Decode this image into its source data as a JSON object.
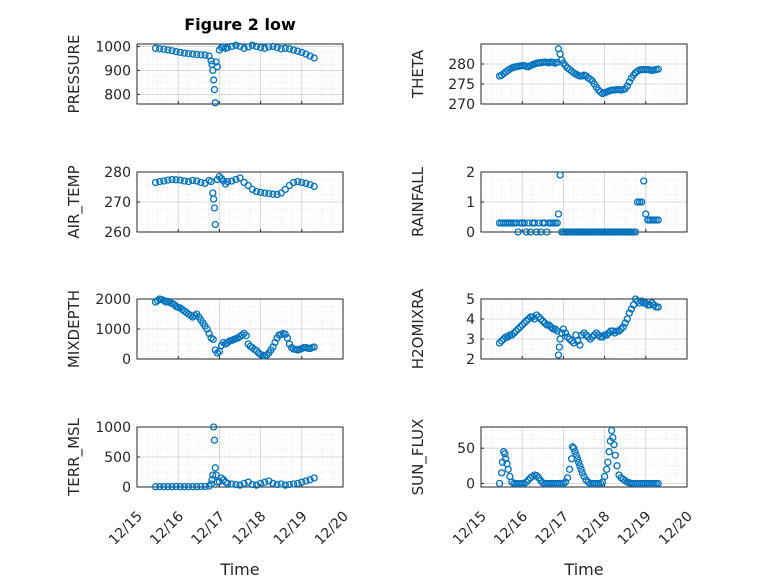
{
  "figure": {
    "title": "Figure 2 low",
    "marker_color": "#0072bd"
  },
  "chart_data": [
    {
      "type": "scatter",
      "panel": "pressure",
      "title": "Figure 2 low",
      "ylabel": "PRESSURE",
      "ylim": [
        760,
        1010
      ],
      "yticks": [
        800,
        900,
        1000
      ],
      "xlim": [
        15,
        20
      ],
      "x": [
        15.45,
        15.55,
        15.65,
        15.75,
        15.85,
        15.95,
        16.05,
        16.15,
        16.25,
        16.35,
        16.45,
        16.55,
        16.65,
        16.75,
        16.8,
        16.82,
        16.84,
        16.86,
        16.88,
        16.9,
        16.92,
        16.95,
        17.0,
        17.05,
        17.1,
        17.15,
        17.2,
        17.3,
        17.4,
        17.5,
        17.6,
        17.7,
        17.8,
        17.9,
        18.0,
        18.1,
        18.2,
        18.3,
        18.4,
        18.5,
        18.6,
        18.7,
        18.8,
        18.9,
        19.0,
        19.1,
        19.2,
        19.3
      ],
      "y": [
        992,
        990,
        988,
        985,
        982,
        978,
        975,
        972,
        970,
        968,
        966,
        965,
        964,
        960,
        940,
        925,
        900,
        860,
        820,
        765,
        935,
        915,
        985,
        995,
        998,
        992,
        995,
        1000,
        1005,
        1000,
        992,
        998,
        1005,
        1000,
        995,
        992,
        998,
        1000,
        995,
        990,
        992,
        990,
        985,
        980,
        975,
        968,
        960,
        952
      ]
    },
    {
      "type": "scatter",
      "panel": "theta",
      "ylabel": "THETA",
      "ylim": [
        270,
        285
      ],
      "yticks": [
        270,
        275,
        280
      ],
      "xlim": [
        15,
        20
      ],
      "x": [
        15.45,
        15.5,
        15.55,
        15.6,
        15.65,
        15.7,
        15.75,
        15.8,
        15.85,
        15.9,
        15.95,
        16.0,
        16.05,
        16.1,
        16.15,
        16.2,
        16.25,
        16.3,
        16.35,
        16.4,
        16.45,
        16.5,
        16.55,
        16.6,
        16.65,
        16.7,
        16.75,
        16.8,
        16.85,
        16.88,
        16.92,
        16.96,
        17.0,
        17.05,
        17.1,
        17.15,
        17.2,
        17.25,
        17.3,
        17.35,
        17.4,
        17.45,
        17.5,
        17.55,
        17.6,
        17.65,
        17.7,
        17.75,
        17.8,
        17.85,
        17.9,
        17.95,
        18.0,
        18.05,
        18.1,
        18.15,
        18.2,
        18.25,
        18.3,
        18.35,
        18.4,
        18.45,
        18.5,
        18.55,
        18.6,
        18.65,
        18.7,
        18.75,
        18.8,
        18.85,
        18.9,
        18.95,
        19.0,
        19.05,
        19.1,
        19.15,
        19.2,
        19.25,
        19.3
      ],
      "y": [
        277.0,
        277.2,
        277.6,
        278.0,
        278.4,
        278.7,
        279.0,
        279.2,
        279.3,
        279.4,
        279.5,
        279.6,
        279.6,
        279.4,
        279.3,
        279.6,
        279.8,
        280.0,
        280.2,
        280.3,
        280.3,
        280.4,
        280.5,
        280.4,
        280.3,
        280.5,
        280.4,
        280.2,
        280.4,
        283.8,
        282.5,
        281.0,
        280.2,
        279.6,
        279.0,
        278.6,
        278.2,
        277.8,
        277.5,
        277.2,
        277.0,
        277.0,
        277.2,
        277.0,
        276.5,
        276.2,
        275.8,
        275.0,
        274.2,
        273.5,
        273.0,
        272.6,
        272.8,
        273.0,
        273.2,
        273.4,
        273.5,
        273.5,
        273.6,
        273.6,
        273.5,
        273.6,
        273.8,
        274.5,
        275.5,
        276.5,
        277.2,
        277.8,
        278.2,
        278.5,
        278.6,
        278.6,
        278.6,
        278.6,
        278.5,
        278.4,
        278.5,
        278.6,
        278.7
      ]
    },
    {
      "type": "scatter",
      "panel": "air_temp",
      "ylabel": "AIR_TEMP",
      "ylim": [
        260,
        280
      ],
      "yticks": [
        260,
        270,
        280
      ],
      "xlim": [
        15,
        20
      ],
      "x": [
        15.45,
        15.55,
        15.65,
        15.75,
        15.85,
        15.95,
        16.05,
        16.15,
        16.25,
        16.35,
        16.45,
        16.55,
        16.65,
        16.75,
        16.8,
        16.84,
        16.86,
        16.88,
        16.9,
        16.95,
        17.0,
        17.05,
        17.1,
        17.15,
        17.2,
        17.3,
        17.4,
        17.5,
        17.6,
        17.7,
        17.8,
        17.9,
        18.0,
        18.1,
        18.2,
        18.3,
        18.4,
        18.5,
        18.6,
        18.7,
        18.8,
        18.9,
        19.0,
        19.1,
        19.2,
        19.3
      ],
      "y": [
        276.5,
        276.8,
        277.0,
        277.3,
        277.5,
        277.4,
        277.3,
        277.0,
        276.8,
        277.2,
        277.0,
        276.5,
        276.2,
        277.2,
        276.8,
        273.0,
        271.0,
        268.0,
        262.5,
        277.5,
        278.5,
        277.8,
        277.0,
        276.0,
        276.8,
        277.0,
        277.5,
        278.0,
        276.5,
        275.5,
        274.2,
        273.5,
        273.2,
        273.0,
        272.8,
        272.6,
        272.5,
        273.0,
        274.2,
        275.5,
        276.5,
        276.8,
        276.5,
        276.2,
        275.8,
        275.2
      ]
    },
    {
      "type": "scatter",
      "panel": "rainfall",
      "ylabel": "RAINFALL",
      "ylim": [
        0,
        2
      ],
      "yticks": [
        0,
        1,
        2
      ],
      "xlim": [
        15,
        20
      ],
      "x": [
        15.45,
        15.5,
        15.55,
        15.6,
        15.65,
        15.7,
        15.75,
        15.8,
        15.85,
        15.9,
        15.95,
        16.0,
        16.05,
        16.1,
        16.15,
        16.2,
        16.25,
        16.3,
        16.35,
        16.4,
        16.45,
        16.5,
        16.55,
        16.6,
        16.65,
        16.7,
        16.75,
        16.8,
        16.85,
        16.88,
        16.92,
        16.96,
        17.0,
        17.05,
        17.1,
        17.15,
        17.2,
        17.25,
        17.3,
        17.35,
        17.4,
        17.45,
        17.5,
        17.55,
        17.6,
        17.65,
        17.7,
        17.75,
        17.8,
        17.85,
        17.9,
        17.95,
        18.0,
        18.05,
        18.1,
        18.15,
        18.2,
        18.25,
        18.3,
        18.35,
        18.4,
        18.45,
        18.5,
        18.55,
        18.6,
        18.65,
        18.7,
        18.75,
        18.8,
        18.85,
        18.9,
        18.95,
        19.0,
        19.05,
        19.1,
        19.15,
        19.2,
        19.25,
        19.3
      ],
      "y": [
        0.3,
        0.3,
        0.3,
        0.3,
        0.3,
        0.3,
        0.3,
        0.3,
        0.3,
        0.0,
        0.3,
        0.3,
        0.3,
        0.0,
        0.3,
        0.0,
        0.3,
        0.3,
        0.0,
        0.3,
        0.0,
        0.3,
        0.3,
        0.0,
        0.3,
        0.3,
        0.3,
        0.3,
        0.3,
        0.6,
        1.9,
        0.0,
        0.0,
        0.0,
        0.0,
        0.0,
        0.0,
        0.0,
        0.0,
        0.0,
        0.0,
        0.0,
        0.0,
        0.0,
        0.0,
        0.0,
        0.0,
        0.0,
        0.0,
        0.0,
        0.0,
        0.0,
        0.0,
        0.0,
        0.0,
        0.0,
        0.0,
        0.0,
        0.0,
        0.0,
        0.0,
        0.0,
        0.0,
        0.0,
        0.0,
        0.0,
        0.0,
        0.0,
        1.0,
        1.0,
        1.0,
        1.7,
        0.6,
        0.4,
        0.4,
        0.4,
        0.4,
        0.4,
        0.4
      ]
    },
    {
      "type": "scatter",
      "panel": "mixdepth",
      "ylabel": "MIXDEPTH",
      "ylim": [
        0,
        2000
      ],
      "yticks": [
        0,
        1000,
        2000
      ],
      "xlim": [
        15,
        20
      ],
      "x": [
        15.45,
        15.5,
        15.55,
        15.6,
        15.65,
        15.7,
        15.75,
        15.8,
        15.85,
        15.9,
        15.95,
        16.0,
        16.05,
        16.1,
        16.15,
        16.2,
        16.25,
        16.3,
        16.35,
        16.4,
        16.45,
        16.5,
        16.55,
        16.6,
        16.65,
        16.7,
        16.75,
        16.8,
        16.85,
        16.9,
        16.95,
        17.0,
        17.05,
        17.1,
        17.15,
        17.2,
        17.25,
        17.3,
        17.35,
        17.4,
        17.45,
        17.5,
        17.55,
        17.6,
        17.65,
        17.7,
        17.75,
        17.8,
        17.85,
        17.9,
        17.95,
        18.0,
        18.05,
        18.1,
        18.15,
        18.2,
        18.25,
        18.3,
        18.35,
        18.4,
        18.45,
        18.5,
        18.55,
        18.6,
        18.65,
        18.7,
        18.75,
        18.8,
        18.85,
        18.9,
        18.95,
        19.0,
        19.05,
        19.1,
        19.15,
        19.2,
        19.25,
        19.3
      ],
      "y": [
        1900,
        1950,
        2000,
        1980,
        1950,
        1900,
        1920,
        1880,
        1850,
        1820,
        1750,
        1720,
        1700,
        1650,
        1600,
        1550,
        1500,
        1450,
        1400,
        1450,
        1500,
        1400,
        1300,
        1200,
        1100,
        1000,
        850,
        700,
        650,
        300,
        200,
        250,
        450,
        550,
        500,
        550,
        600,
        620,
        650,
        680,
        700,
        750,
        800,
        850,
        780,
        500,
        420,
        380,
        320,
        280,
        200,
        150,
        120,
        100,
        130,
        200,
        300,
        400,
        550,
        700,
        800,
        820,
        850,
        820,
        700,
        500,
        380,
        330,
        320,
        300,
        320,
        350,
        380,
        380,
        360,
        350,
        380,
        400
      ]
    },
    {
      "type": "scatter",
      "panel": "h2omixra",
      "ylabel": "H2OMIXRA",
      "ylim": [
        2,
        5
      ],
      "yticks": [
        2,
        3,
        4,
        5
      ],
      "xlim": [
        15,
        20
      ],
      "x": [
        15.45,
        15.5,
        15.55,
        15.6,
        15.65,
        15.7,
        15.75,
        15.8,
        15.85,
        15.9,
        15.95,
        16.0,
        16.05,
        16.1,
        16.15,
        16.2,
        16.25,
        16.3,
        16.35,
        16.4,
        16.45,
        16.5,
        16.55,
        16.6,
        16.65,
        16.7,
        16.75,
        16.8,
        16.85,
        16.88,
        16.9,
        16.92,
        16.96,
        17.0,
        17.05,
        17.1,
        17.15,
        17.2,
        17.25,
        17.3,
        17.35,
        17.4,
        17.45,
        17.5,
        17.55,
        17.6,
        17.65,
        17.7,
        17.75,
        17.8,
        17.85,
        17.9,
        17.95,
        18.0,
        18.05,
        18.1,
        18.15,
        18.2,
        18.25,
        18.3,
        18.35,
        18.4,
        18.45,
        18.5,
        18.55,
        18.6,
        18.65,
        18.7,
        18.75,
        18.8,
        18.85,
        18.9,
        18.95,
        19.0,
        19.05,
        19.1,
        19.15,
        19.2,
        19.25,
        19.3
      ],
      "y": [
        2.8,
        2.9,
        3.0,
        3.1,
        3.1,
        3.2,
        3.2,
        3.3,
        3.4,
        3.5,
        3.6,
        3.7,
        3.8,
        3.9,
        4.0,
        4.1,
        4.1,
        4.0,
        4.2,
        4.1,
        4.0,
        3.9,
        3.8,
        3.7,
        3.7,
        3.6,
        3.5,
        3.5,
        3.4,
        2.2,
        2.6,
        3.0,
        3.3,
        3.5,
        3.3,
        3.1,
        3.0,
        2.9,
        2.8,
        3.2,
        2.9,
        2.7,
        3.2,
        3.3,
        3.2,
        3.1,
        3.0,
        3.1,
        3.2,
        3.3,
        3.2,
        3.1,
        3.1,
        3.2,
        3.2,
        3.3,
        3.4,
        3.4,
        3.3,
        3.4,
        3.4,
        3.5,
        3.6,
        3.8,
        4.0,
        4.3,
        4.5,
        4.7,
        5.0,
        4.9,
        4.8,
        4.9,
        4.8,
        4.8,
        4.7,
        4.7,
        4.8,
        4.7,
        4.6,
        4.6
      ]
    },
    {
      "type": "scatter",
      "panel": "terr_msl",
      "ylabel": "TERR_MSL",
      "ylim": [
        0,
        1000
      ],
      "yticks": [
        0,
        500,
        1000
      ],
      "xlim": [
        15,
        20
      ],
      "xticks": [
        15,
        16,
        17,
        18,
        19,
        20
      ],
      "xticklabels": [
        "12/15",
        "12/16",
        "12/17",
        "12/18",
        "12/19",
        "12/20"
      ],
      "xlabel": "Time",
      "x": [
        15.45,
        15.55,
        15.65,
        15.75,
        15.85,
        15.95,
        16.05,
        16.15,
        16.25,
        16.35,
        16.45,
        16.55,
        16.65,
        16.75,
        16.8,
        16.82,
        16.84,
        16.86,
        16.88,
        16.9,
        16.92,
        16.95,
        17.0,
        17.05,
        17.1,
        17.15,
        17.2,
        17.3,
        17.4,
        17.5,
        17.6,
        17.7,
        17.8,
        17.9,
        18.0,
        18.1,
        18.2,
        18.3,
        18.4,
        18.5,
        18.6,
        18.7,
        18.8,
        18.9,
        19.0,
        19.1,
        19.2,
        19.3
      ],
      "y": [
        5,
        5,
        5,
        5,
        5,
        8,
        5,
        5,
        5,
        5,
        5,
        8,
        10,
        15,
        50,
        120,
        200,
        1000,
        780,
        320,
        200,
        80,
        90,
        150,
        120,
        80,
        60,
        50,
        40,
        30,
        60,
        80,
        40,
        30,
        60,
        80,
        100,
        60,
        40,
        50,
        30,
        40,
        50,
        60,
        80,
        100,
        120,
        150
      ]
    },
    {
      "type": "scatter",
      "panel": "sun_flux",
      "ylabel": "SUN_FLUX",
      "ylim": [
        -5,
        80
      ],
      "yticks": [
        0,
        50
      ],
      "xlim": [
        15,
        20
      ],
      "xticks": [
        15,
        16,
        17,
        18,
        19,
        20
      ],
      "xticklabels": [
        "12/15",
        "12/16",
        "12/17",
        "12/18",
        "12/19",
        "12/20"
      ],
      "xlabel": "Time",
      "x": [
        15.45,
        15.5,
        15.52,
        15.55,
        15.58,
        15.6,
        15.63,
        15.66,
        15.7,
        15.75,
        15.8,
        15.85,
        15.9,
        15.95,
        16.0,
        16.05,
        16.1,
        16.15,
        16.2,
        16.25,
        16.3,
        16.35,
        16.4,
        16.45,
        16.5,
        16.55,
        16.6,
        16.65,
        16.7,
        16.75,
        16.8,
        16.85,
        16.9,
        16.95,
        17.0,
        17.05,
        17.1,
        17.15,
        17.2,
        17.22,
        17.25,
        17.28,
        17.31,
        17.34,
        17.37,
        17.4,
        17.43,
        17.46,
        17.5,
        17.55,
        17.6,
        17.65,
        17.7,
        17.75,
        17.8,
        17.85,
        17.9,
        17.95,
        18.0,
        18.05,
        18.08,
        18.11,
        18.14,
        18.17,
        18.2,
        18.23,
        18.26,
        18.3,
        18.35,
        18.4,
        18.45,
        18.5,
        18.55,
        18.6,
        18.65,
        18.7,
        18.75,
        18.8,
        18.85,
        18.9,
        18.95,
        19.0,
        19.05,
        19.1,
        19.15,
        19.2,
        19.25,
        19.3
      ],
      "y": [
        0,
        15,
        30,
        45,
        42,
        35,
        28,
        20,
        10,
        2,
        0,
        0,
        0,
        0,
        0,
        0,
        2,
        5,
        8,
        10,
        12,
        11,
        8,
        4,
        1,
        0,
        0,
        0,
        0,
        0,
        0,
        0,
        0,
        0,
        0,
        2,
        8,
        20,
        35,
        52,
        50,
        45,
        40,
        35,
        30,
        25,
        20,
        15,
        10,
        5,
        2,
        0,
        0,
        0,
        0,
        0,
        0,
        2,
        10,
        20,
        30,
        45,
        60,
        75,
        65,
        55,
        40,
        25,
        12,
        8,
        6,
        4,
        2,
        1,
        0,
        0,
        0,
        0,
        0,
        0,
        0,
        0,
        0,
        0,
        0,
        0,
        0,
        0
      ]
    }
  ]
}
